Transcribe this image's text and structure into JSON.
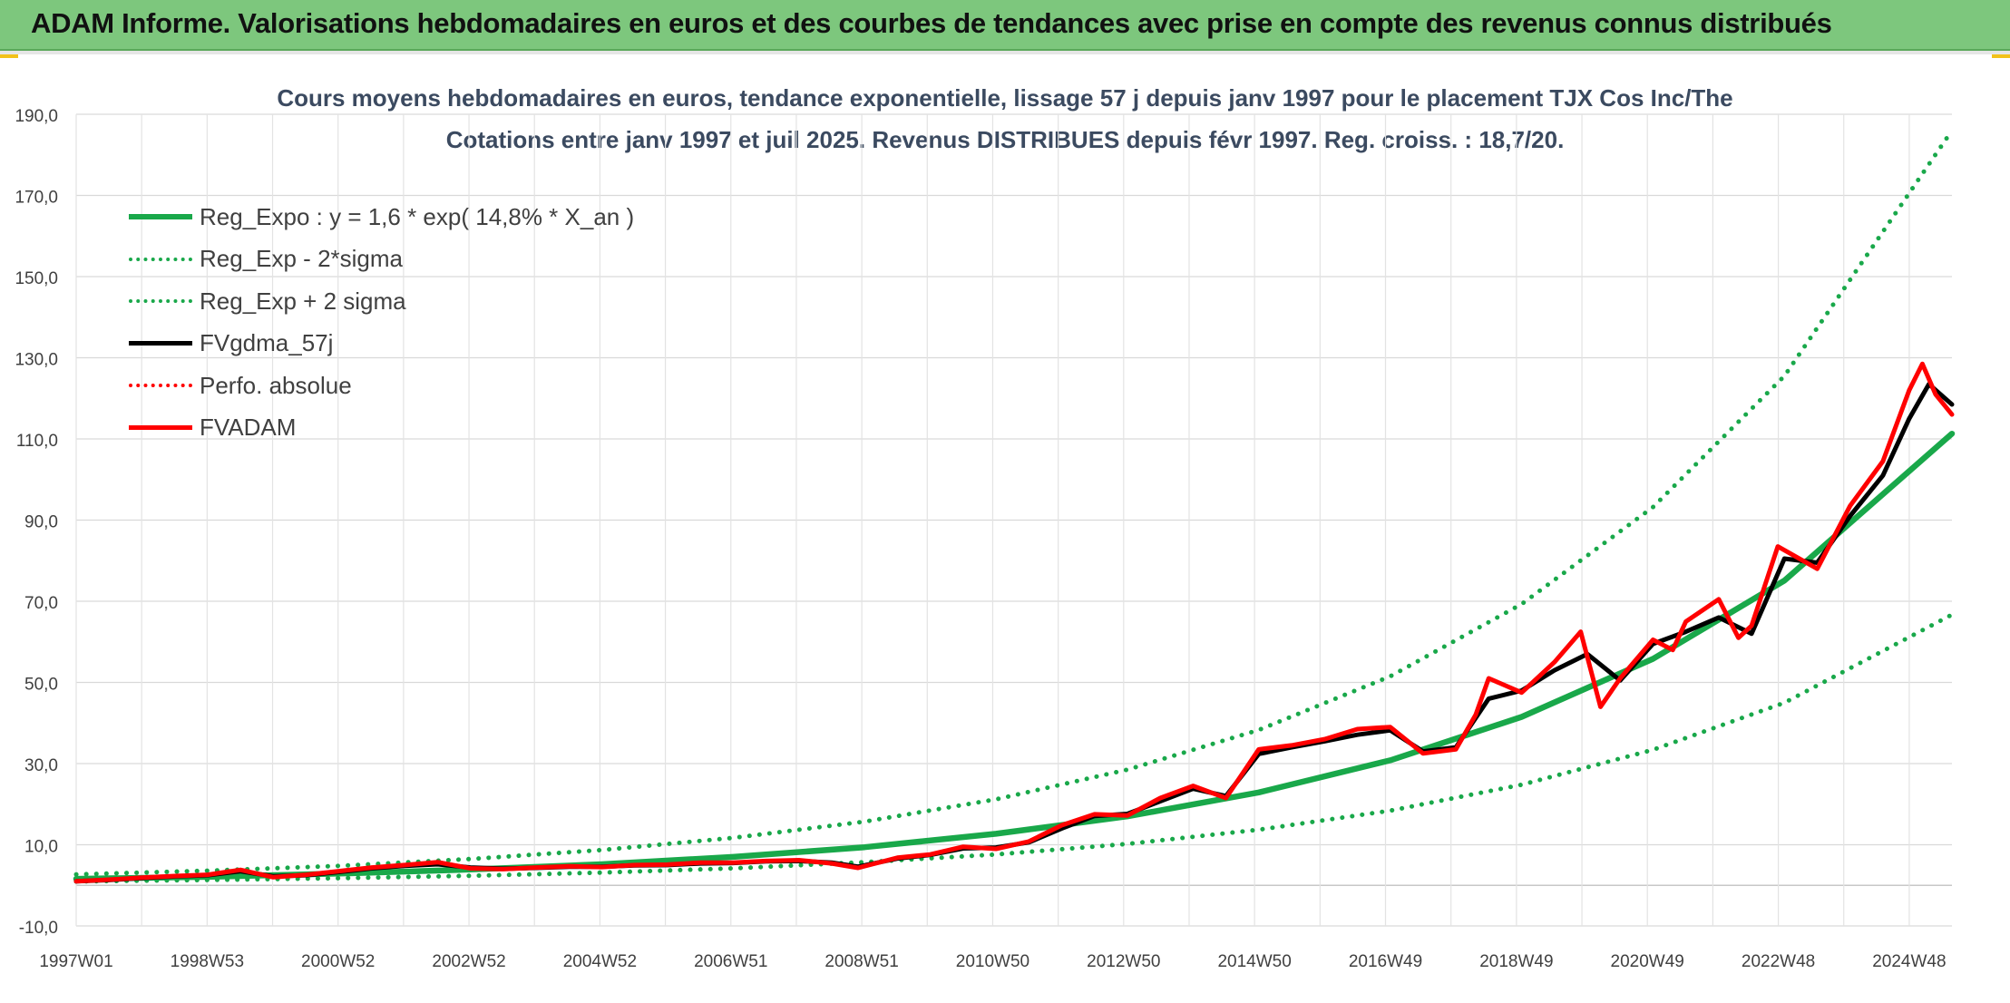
{
  "header": {
    "title": "ADAM Informe. Valorisations hebdomadaires en euros et des courbes de tendances avec prise en compte des revenus connus distribués"
  },
  "chart_data": {
    "type": "line",
    "title": "Cours moyens hebdomadaires en euros, tendance exponentielle, lissage 57 j depuis janv 1997 pour le placement TJX Cos Inc/The",
    "subtitle": "Cotations entre janv 1997 et juil 2025. Revenus DISTRIBUES depuis févr 1997. Reg. croiss. : 18,7/20.",
    "xlabel": "",
    "ylabel": "",
    "ylim": [
      -10,
      190
    ],
    "xlim": [
      1997.0,
      2025.55
    ],
    "y_ticks": [
      "190,0",
      "170,0",
      "150,0",
      "130,0",
      "110,0",
      "90,0",
      "70,0",
      "50,0",
      "30,0",
      "10,0",
      "-10,0"
    ],
    "x_tick_labels": [
      "1997W01",
      "1998W53",
      "2000W52",
      "2002W52",
      "2004W52",
      "2006W51",
      "2008W51",
      "2010W50",
      "2012W50",
      "2014W50",
      "2016W49",
      "2018W49",
      "2020W49",
      "2022W48",
      "2024W48"
    ],
    "grid": true,
    "legend_position": "top-left",
    "series": [
      {
        "name": "Reg_Expo : y = 1,6 * exp( 14,8% *  X_an )",
        "color": "#19a84a",
        "style": "solid",
        "x": [
          1997,
          1999,
          2001,
          2003,
          2005,
          2007,
          2009,
          2011,
          2013,
          2015,
          2017,
          2019,
          2021,
          2023,
          2025.55
        ],
        "y": [
          1.6,
          2.1,
          2.9,
          3.9,
          5.2,
          7.0,
          9.4,
          12.7,
          17.0,
          22.9,
          30.8,
          41.5,
          55.8,
          75.1,
          111.3
        ]
      },
      {
        "name": "Reg_Exp - 2*sigma",
        "color": "#19a84a",
        "style": "dotted",
        "x": [
          1997,
          1999,
          2001,
          2003,
          2005,
          2007,
          2009,
          2011,
          2013,
          2015,
          2017,
          2019,
          2021,
          2023,
          2025.55
        ],
        "y": [
          0.95,
          1.3,
          1.75,
          2.35,
          3.15,
          4.2,
          5.7,
          7.6,
          10.2,
          13.7,
          18.4,
          24.8,
          33.4,
          45.0,
          66.7
        ]
      },
      {
        "name": "Reg_Exp + 2 sigma",
        "color": "#19a84a",
        "style": "dotted",
        "x": [
          1997,
          1999,
          2001,
          2003,
          2005,
          2007,
          2009,
          2011,
          2013,
          2015,
          2017,
          2019,
          2021,
          2023,
          2025.55
        ],
        "y": [
          2.7,
          3.6,
          4.8,
          6.5,
          8.7,
          11.7,
          15.7,
          21.2,
          28.5,
          38.3,
          51.5,
          69.3,
          93.2,
          125.5,
          186.0
        ]
      },
      {
        "name": "FVgdma_57j",
        "color": "#000000",
        "style": "solid",
        "x": [
          1997,
          1997.5,
          1998,
          1998.5,
          1999.0,
          1999.5,
          2000.0,
          2000.5,
          2001.0,
          2001.5,
          2002.0,
          2002.5,
          2003.0,
          2003.5,
          2004.0,
          2004.5,
          2005.0,
          2005.5,
          2006.0,
          2006.5,
          2007.0,
          2007.5,
          2008.0,
          2008.5,
          2008.9,
          2009.5,
          2010.0,
          2010.5,
          2011.0,
          2011.5,
          2012.0,
          2012.5,
          2013.0,
          2013.5,
          2014.0,
          2014.5,
          2015.0,
          2015.5,
          2016.0,
          2016.5,
          2017.0,
          2017.5,
          2018.0,
          2018.5,
          2019.0,
          2019.5,
          2020.0,
          2020.5,
          2021.0,
          2021.5,
          2022.0,
          2022.5,
          2023.0,
          2023.5,
          2024.0,
          2024.5,
          2024.9,
          2025.2,
          2025.55
        ],
        "y": [
          1.0,
          1.3,
          1.8,
          2.2,
          2.5,
          3.5,
          2.2,
          2.5,
          3.3,
          4.2,
          4.8,
          5.2,
          4.4,
          4.1,
          4.3,
          4.6,
          4.6,
          4.9,
          5.0,
          5.4,
          5.5,
          5.9,
          6.0,
          5.6,
          4.6,
          6.6,
          7.5,
          9.1,
          9.3,
          10.6,
          14.0,
          17.1,
          17.6,
          20.7,
          23.8,
          22.0,
          32.4,
          34.0,
          35.5,
          37.1,
          38.2,
          33.0,
          34.0,
          46.0,
          48.0,
          53.0,
          57.0,
          50.5,
          59.5,
          62.5,
          66.0,
          62.0,
          80.5,
          79.5,
          91.0,
          101.0,
          115.0,
          123.5,
          118.5
        ]
      },
      {
        "name": "Perfo. absolue",
        "color": "#ff0000",
        "style": "dotted",
        "x": [],
        "y": []
      },
      {
        "name": "FVADAM",
        "color": "#ff0000",
        "style": "solid",
        "x": [
          1997,
          1997.5,
          1998,
          1998.5,
          1999.0,
          1999.5,
          2000.0,
          2000.5,
          2001.0,
          2001.5,
          2002.0,
          2002.5,
          2003.0,
          2003.5,
          2004.0,
          2004.5,
          2005.0,
          2005.5,
          2006.0,
          2006.5,
          2007.0,
          2007.5,
          2008.0,
          2008.5,
          2008.9,
          2009.5,
          2010.0,
          2010.5,
          2011.0,
          2011.5,
          2012.0,
          2012.5,
          2013.0,
          2013.5,
          2014.0,
          2014.5,
          2015.0,
          2015.5,
          2016.0,
          2016.5,
          2017.0,
          2017.5,
          2018.0,
          2018.3,
          2018.5,
          2019.0,
          2019.5,
          2019.9,
          2020.2,
          2020.5,
          2021.0,
          2021.3,
          2021.5,
          2022.0,
          2022.3,
          2022.5,
          2022.9,
          2023.5,
          2024.0,
          2024.5,
          2024.9,
          2025.1,
          2025.3,
          2025.55
        ],
        "y": [
          1.0,
          1.4,
          1.9,
          2.3,
          2.6,
          3.8,
          2.0,
          2.6,
          3.5,
          4.4,
          5.0,
          5.7,
          4.2,
          4.0,
          4.4,
          4.7,
          4.5,
          5.0,
          5.1,
          5.6,
          5.6,
          6.0,
          6.2,
          5.4,
          4.3,
          6.8,
          7.6,
          9.5,
          9.0,
          10.8,
          14.8,
          17.5,
          17.2,
          21.5,
          24.5,
          21.5,
          33.5,
          34.5,
          36.0,
          38.5,
          39.0,
          32.5,
          33.5,
          42.0,
          51.0,
          47.5,
          55.0,
          62.5,
          44.0,
          51.0,
          60.5,
          58.0,
          65.0,
          70.5,
          61.0,
          64.0,
          83.5,
          78.0,
          93.5,
          104.5,
          122.0,
          128.5,
          121.0,
          116.0
        ]
      }
    ]
  }
}
